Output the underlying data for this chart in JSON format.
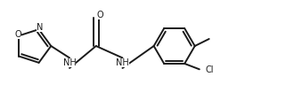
{
  "background_color": "#ffffff",
  "line_color": "#1a1a1a",
  "line_width": 1.4,
  "font_size": 7.0,
  "figsize": [
    3.21,
    1.04
  ],
  "dpi": 100,
  "xlim": [
    0.0,
    10.0
  ],
  "ylim": [
    0.0,
    3.2
  ]
}
